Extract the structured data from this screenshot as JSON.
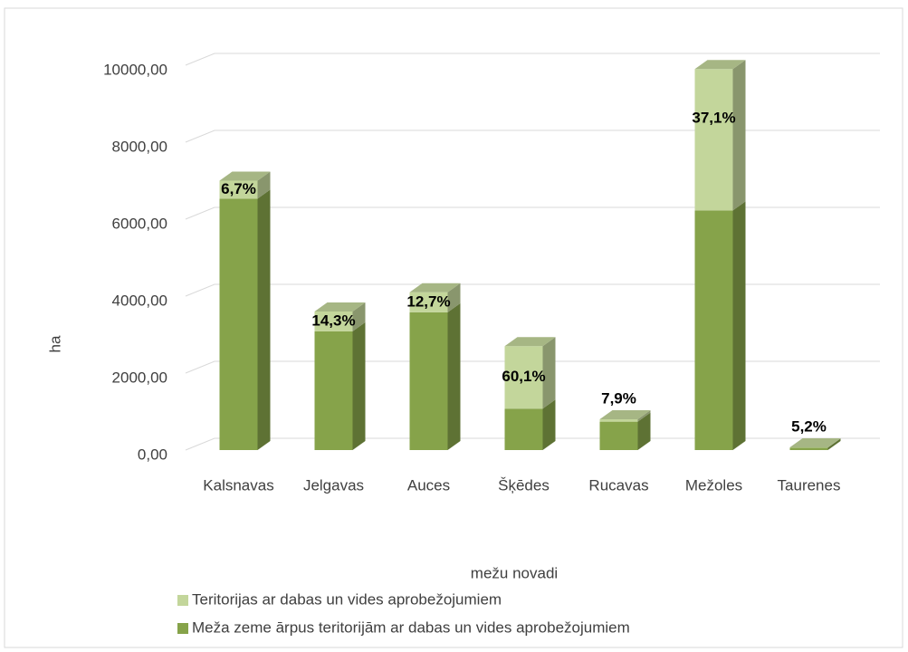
{
  "chart_data": {
    "type": "bar3d_stacked",
    "x_label": "mežu novadi",
    "y_label": "ha",
    "categories": [
      "Kalsnavas",
      "Jelgavas",
      "Auces",
      "Šķēdes",
      "Rucavas",
      "Mežoles",
      "Taurenes"
    ],
    "series": [
      {
        "name": "Meža zeme ārpus teritorijām ar dabas un vides aprobežojumiem",
        "color": "#86a34a",
        "values": [
          6531,
          3085,
          3579,
          1077,
          737,
          6227,
          66
        ]
      },
      {
        "name": "Teritorijas ar dabas un vides aprobežojumiem",
        "color": "#c3d69b",
        "values": [
          469,
          515,
          521,
          1623,
          63,
          3673,
          4
        ],
        "shares": [
          6.7,
          14.3,
          12.7,
          60.1,
          7.9,
          37.1,
          5.2
        ],
        "share_labels": [
          "6,7%",
          "14,3%",
          "12,7%",
          "60,1%",
          "7,9%",
          "37,1%",
          "5,2%"
        ]
      }
    ],
    "ylim": [
      0,
      10000
    ],
    "yticks": [
      {
        "value": 0,
        "label": "0,00"
      },
      {
        "value": 2000,
        "label": "2000,00"
      },
      {
        "value": 4000,
        "label": "4000,00"
      },
      {
        "value": 6000,
        "label": "6000,00"
      },
      {
        "value": 8000,
        "label": "8000,00"
      },
      {
        "value": 10000,
        "label": "10000,00"
      }
    ],
    "grid": true,
    "legend": "bottom"
  }
}
